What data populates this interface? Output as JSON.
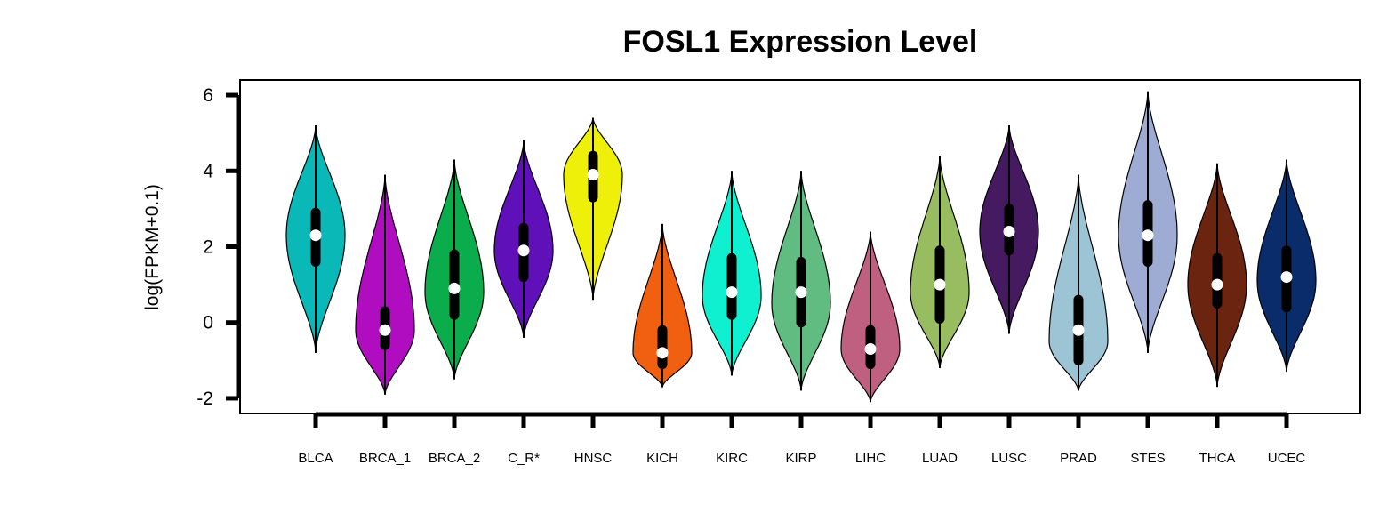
{
  "chart_data": {
    "type": "violin",
    "title": "FOSL1 Expression Level",
    "xlabel": "",
    "ylabel": "log(FPKM+0.1)",
    "ylim": [
      -2.4,
      6.4
    ],
    "yticks": [
      "6",
      "4",
      "2",
      "0",
      "-2"
    ],
    "grid": false,
    "legend": "none",
    "categories": [
      "BLCA",
      "BRCA_1",
      "BRCA_2",
      "C_R*",
      "HNSC",
      "KICH",
      "KIRC",
      "KIRP",
      "LIHC",
      "LUAD",
      "LUSC",
      "PRAD",
      "STES",
      "THCA",
      "UCEC"
    ],
    "series": [
      {
        "category": "BLCA",
        "color": "#0ab8b8",
        "min": -0.8,
        "max": 5.2,
        "q1": 1.6,
        "median": 2.3,
        "q3": 2.9,
        "peak": 2.3
      },
      {
        "category": "BRCA_1",
        "color": "#b00cc0",
        "min": -1.9,
        "max": 3.9,
        "q1": -0.6,
        "median": -0.2,
        "q3": 0.3,
        "peak": -0.2
      },
      {
        "category": "BRCA_2",
        "color": "#0aac4c",
        "min": -1.5,
        "max": 4.3,
        "q1": 0.2,
        "median": 0.9,
        "q3": 1.8,
        "peak": 0.8
      },
      {
        "category": "C_R*",
        "color": "#6010b8",
        "min": -0.4,
        "max": 4.8,
        "q1": 1.2,
        "median": 1.9,
        "q3": 2.5,
        "peak": 1.9
      },
      {
        "category": "HNSC",
        "color": "#eef00a",
        "min": 0.6,
        "max": 5.4,
        "q1": 3.3,
        "median": 3.9,
        "q3": 4.4,
        "peak": 3.9
      },
      {
        "category": "KICH",
        "color": "#f06010",
        "min": -1.7,
        "max": 2.6,
        "q1": -1.1,
        "median": -0.8,
        "q3": -0.2,
        "peak": -0.8
      },
      {
        "category": "KIRC",
        "color": "#0ef0d0",
        "min": -1.4,
        "max": 4.0,
        "q1": 0.2,
        "median": 0.8,
        "q3": 1.7,
        "peak": 0.7
      },
      {
        "category": "KIRP",
        "color": "#60bc80",
        "min": -1.8,
        "max": 4.0,
        "q1": 0.0,
        "median": 0.8,
        "q3": 1.6,
        "peak": 0.5
      },
      {
        "category": "LIHC",
        "color": "#c06080",
        "min": -2.1,
        "max": 2.4,
        "q1": -1.1,
        "median": -0.7,
        "q3": -0.2,
        "peak": -0.7
      },
      {
        "category": "LUAD",
        "color": "#98bc60",
        "min": -1.2,
        "max": 4.4,
        "q1": 0.1,
        "median": 1.0,
        "q3": 1.9,
        "peak": 0.8
      },
      {
        "category": "LUSC",
        "color": "#461a60",
        "min": -0.3,
        "max": 5.2,
        "q1": 1.9,
        "median": 2.4,
        "q3": 3.0,
        "peak": 2.4
      },
      {
        "category": "PRAD",
        "color": "#9cc4d4",
        "min": -1.8,
        "max": 3.9,
        "q1": -1.0,
        "median": -0.2,
        "q3": 0.6,
        "peak": -0.5
      },
      {
        "category": "STES",
        "color": "#9eacd4",
        "min": -0.8,
        "max": 6.1,
        "q1": 1.6,
        "median": 2.3,
        "q3": 3.1,
        "peak": 2.3
      },
      {
        "category": "THCA",
        "color": "#6a2410",
        "min": -1.7,
        "max": 4.2,
        "q1": 0.5,
        "median": 1.0,
        "q3": 1.7,
        "peak": 1.0
      },
      {
        "category": "UCEC",
        "color": "#0a2c6a",
        "min": -1.3,
        "max": 4.3,
        "q1": 0.4,
        "median": 1.2,
        "q3": 1.9,
        "peak": 1.1
      }
    ]
  }
}
